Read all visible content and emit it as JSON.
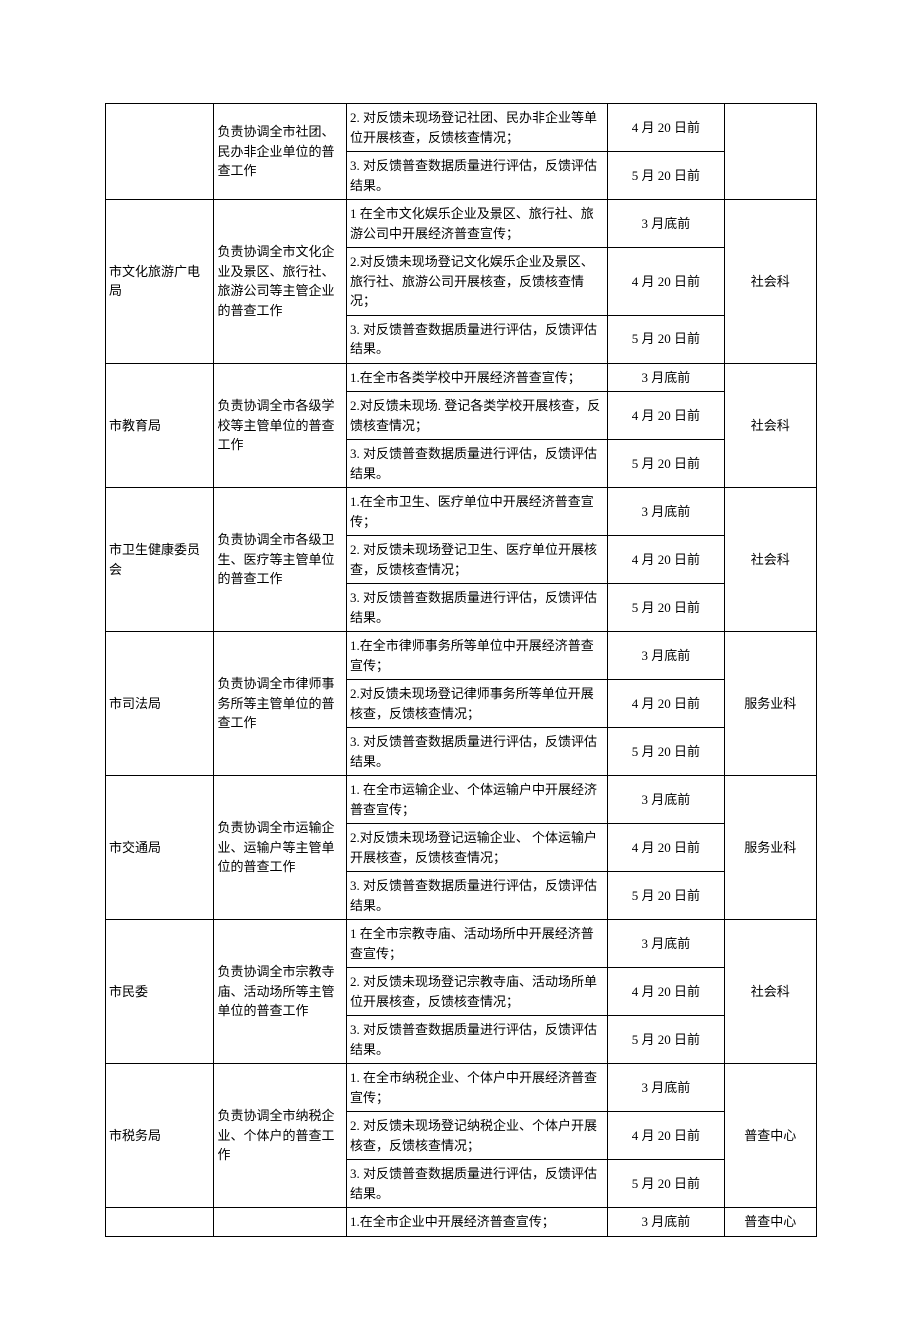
{
  "rows": [
    {
      "dept": "",
      "dept_rs": 2,
      "duty": "负责协调全市社团、民办非企业单位的普查工作",
      "duty_rs": 2,
      "task": "2. 对反馈未现场登记社团、民办非企业等单位开展核查，反馈核查情况；",
      "date": "4 月 20 日前",
      "ke": "",
      "ke_rs": 2
    },
    {
      "task": "3. 对反馈普查数据质量进行评估，反馈评估结果。",
      "date": "5 月 20 日前"
    },
    {
      "dept": "市文化旅游广电局",
      "dept_rs": 3,
      "duty": "负责协调全市文化企业及景区、旅行社、旅游公司等主管企业的普查工作",
      "duty_rs": 3,
      "task": "1 在全市文化娱乐企业及景区、旅行社、旅游公司中开展经济普查宣传；",
      "date": "3 月底前",
      "ke": "社会科",
      "ke_rs": 3
    },
    {
      "task": "2.对反馈未现场登记文化娱乐企业及景区、旅行社、旅游公司开展核查，反馈核查情况；",
      "date": "4 月 20 日前"
    },
    {
      "task": "3. 对反馈普查数据质量进行评估，反馈评估结果。",
      "date": "5 月 20 日前"
    },
    {
      "dept": "市教育局",
      "dept_rs": 3,
      "duty": "负责协调全市各级学校等主管单位的普查工作",
      "duty_rs": 3,
      "task": "1.在全市各类学校中开展经济普查宣传；",
      "date": "3 月底前",
      "ke": "社会科",
      "ke_rs": 3
    },
    {
      "task": "2.对反馈未现场. 登记各类学校开展核查，反馈核查情况；",
      "date": "4 月 20 日前"
    },
    {
      "task": "3. 对反馈普查数据质量进行评估，反馈评估结果。",
      "date": "5 月 20 日前"
    },
    {
      "dept": "市卫生健康委员会",
      "dept_rs": 3,
      "duty": "负责协调全市各级卫生、医疗等主管单位的普查工作",
      "duty_rs": 3,
      "task": "1.在全市卫生、医疗单位中开展经济普查宣传；",
      "date": "3 月底前",
      "ke": "社会科",
      "ke_rs": 3
    },
    {
      "task": "2. 对反馈未现场登记卫生、医疗单位开展核查，反馈核查情况；",
      "date": "4 月 20 日前"
    },
    {
      "task": "3. 对反馈普查数据质量进行评估，反馈评估结果。",
      "date": "5 月 20 日前"
    },
    {
      "dept": "市司法局",
      "dept_rs": 3,
      "duty": "负责协调全市律师事务所等主管单位的普查工作",
      "duty_rs": 3,
      "task": "1.在全市律师事务所等单位中开展经济普查宣传；",
      "date": "3 月底前",
      "ke": "服务业科",
      "ke_rs": 3
    },
    {
      "task": "2.对反馈未现场登记律师事务所等单位开展核查，反馈核查情况；",
      "date": "4 月 20 日前"
    },
    {
      "task": "3. 对反馈普查数据质量进行评估，反馈评估结果。",
      "date": "5 月 20 日前"
    },
    {
      "dept": "市交通局",
      "dept_rs": 3,
      "duty": "负责协调全市运输企业、运输户等主管单位的普查工作",
      "duty_rs": 3,
      "task": "1. 在全市运输企业、个体运输户中开展经济普查宣传；",
      "date": "3 月底前",
      "ke": "服务业科",
      "ke_rs": 3
    },
    {
      "task": "2.对反馈未现场登记运输企业、 个体运输户开展核查，反馈核查情况；",
      "date": "4 月 20 日前"
    },
    {
      "task": "3. 对反馈普查数据质量进行评估，反馈评估结果。",
      "date": "5 月 20 日前"
    },
    {
      "dept": "市民委",
      "dept_rs": 3,
      "duty": "负责协调全市宗教寺庙、活动场所等主管单位的普查工作",
      "duty_rs": 3,
      "task": "1 在全市宗教寺庙、活动场所中开展经济普查宣传；",
      "date": "3 月底前",
      "ke": "社会科",
      "ke_rs": 3
    },
    {
      "task": "2. 对反馈未现场登记宗教寺庙、活动场所单位开展核查，反馈核查情况；",
      "date": "4 月 20 日前"
    },
    {
      "task": "3. 对反馈普查数据质量进行评估，反馈评估结果。",
      "date": "5 月 20 日前"
    },
    {
      "dept": "市税务局",
      "dept_rs": 3,
      "duty": "负责协调全市纳税企业、个体户的普查工作",
      "duty_rs": 3,
      "task": "1. 在全市纳税企业、个体户中开展经济普查宣传；",
      "date": "3 月底前",
      "ke": "普查中心",
      "ke_rs": 3
    },
    {
      "task": "2. 对反馈未现场登记纳税企业、个体户开展核查，反馈核查情况；",
      "date": "4 月 20 日前"
    },
    {
      "task": "3. 对反馈普查数据质量进行评估，反馈评估结果。",
      "date": "5 月 20 日前"
    },
    {
      "dept": "",
      "dept_rs": 1,
      "duty": "",
      "duty_rs": 1,
      "task": "1.在全市企业中开展经济普查宣传；",
      "date": "3 月底前",
      "ke": "普查中心",
      "ke_rs": 1
    }
  ]
}
